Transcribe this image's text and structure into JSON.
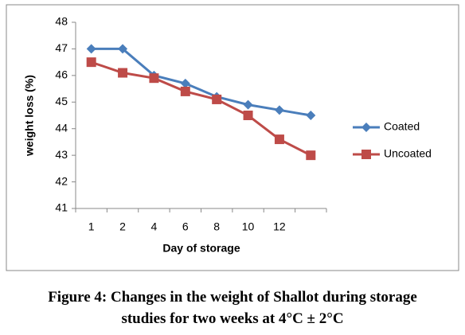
{
  "chart_data": {
    "type": "line",
    "categories": [
      1,
      2,
      4,
      6,
      8,
      10,
      12,
      null
    ],
    "series": [
      {
        "name": "Coated",
        "color": "#4a7ebb",
        "marker": "diamond",
        "values": [
          47,
          47,
          46,
          45.7,
          45.2,
          44.9,
          44.7,
          44.5
        ]
      },
      {
        "name": "Uncoated",
        "color": "#be4b48",
        "marker": "square",
        "values": [
          46.5,
          46.1,
          45.9,
          45.4,
          45.1,
          44.5,
          43.6,
          43
        ]
      }
    ],
    "ylim": [
      41,
      48
    ],
    "yticks": [
      41,
      42,
      43,
      44,
      45,
      46,
      47,
      48
    ],
    "ylabel": "weight loss (%)",
    "xlabel": "Day of storage",
    "legend": "right",
    "caption": "Figure 4: Changes in the weight of Shallot during storage studies for two weeks at 4°C ± 2°C"
  }
}
